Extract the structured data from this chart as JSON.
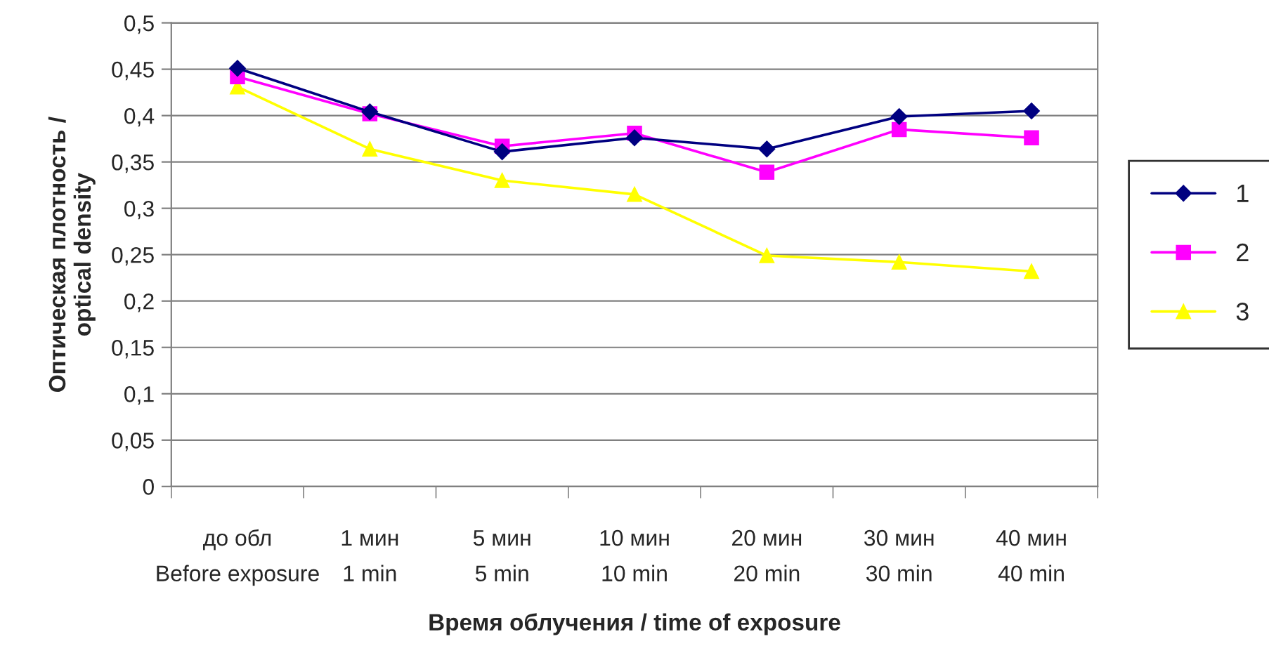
{
  "chart_data": {
    "type": "line",
    "xlabel": "Время облучения / time of exposure",
    "ylabel": "Оптическая плотность /\noptical density",
    "categories": [
      "до обл\nBefore exposure",
      "1 мин\n1 min",
      "5 мин\n5 min",
      "10 мин\n10 min",
      "20 мин\n20 min",
      "30 мин\n30 min",
      "40 мин\n40 min"
    ],
    "series": [
      {
        "name": "1",
        "color": "#000080",
        "marker": "diamond",
        "values": [
          0.451,
          0.404,
          0.361,
          0.376,
          0.364,
          0.399,
          0.405
        ]
      },
      {
        "name": "2",
        "color": "#ff00ff",
        "marker": "square",
        "values": [
          0.442,
          0.402,
          0.367,
          0.381,
          0.339,
          0.385,
          0.376
        ]
      },
      {
        "name": "3",
        "color": "#ffff00",
        "marker": "triangle",
        "values": [
          0.431,
          0.364,
          0.33,
          0.315,
          0.249,
          0.242,
          0.232
        ]
      }
    ],
    "ylim": [
      0,
      0.5
    ],
    "yticks": [
      {
        "value": 0,
        "label": "0"
      },
      {
        "value": 0.05,
        "label": "0,05"
      },
      {
        "value": 0.1,
        "label": "0,1"
      },
      {
        "value": 0.15,
        "label": "0,15"
      },
      {
        "value": 0.2,
        "label": "0,2"
      },
      {
        "value": 0.25,
        "label": "0,25"
      },
      {
        "value": 0.3,
        "label": "0,3"
      },
      {
        "value": 0.35,
        "label": "0,35"
      },
      {
        "value": 0.4,
        "label": "0,4"
      },
      {
        "value": 0.45,
        "label": "0,45"
      },
      {
        "value": 0.5,
        "label": "0,5"
      }
    ],
    "grid": "y",
    "legend": "right",
    "line_style": "solid"
  }
}
